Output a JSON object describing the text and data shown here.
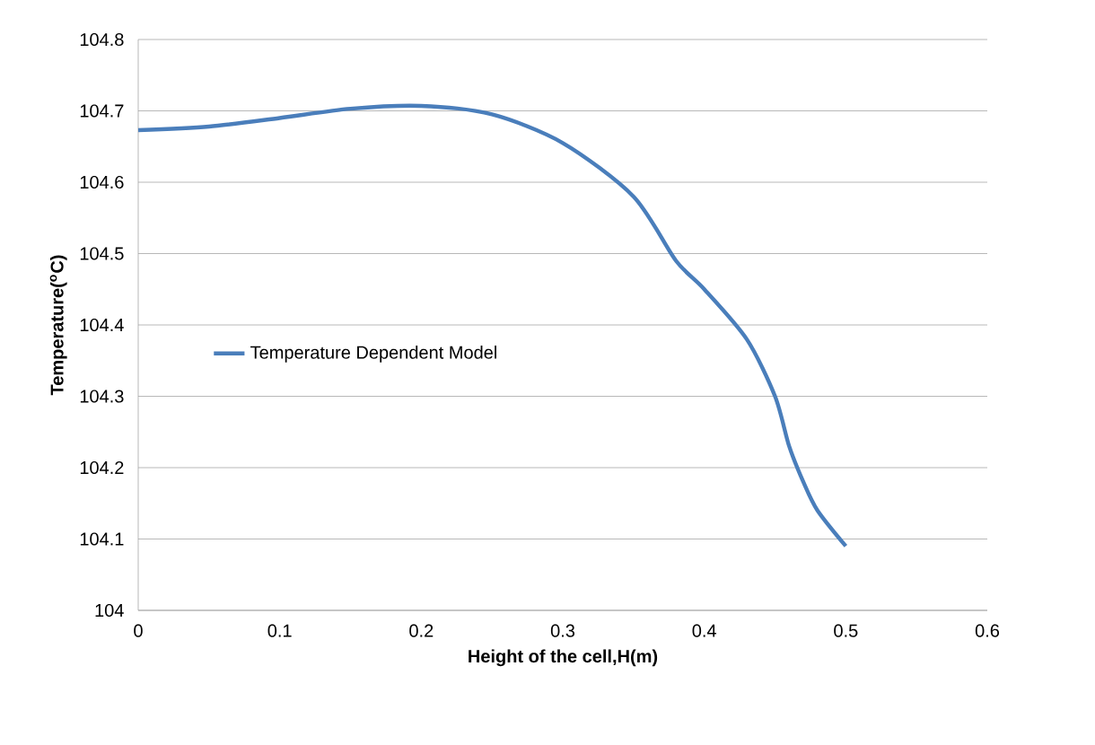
{
  "chart_data": {
    "type": "line",
    "xlabel": "Height of the cell,H(m)",
    "ylabel": "Temperature($^{o}$C)",
    "x": [
      0,
      0.05,
      0.1,
      0.15,
      0.2,
      0.25,
      0.3,
      0.35,
      0.38,
      0.4,
      0.43,
      0.45,
      0.46,
      0.47,
      0.48,
      0.5
    ],
    "series": [
      {
        "name": "Temperature Dependent Model",
        "color": "#4a7ebb",
        "values": [
          104.673,
          104.678,
          104.69,
          104.703,
          104.707,
          104.695,
          104.655,
          104.58,
          104.49,
          104.45,
          104.38,
          104.3,
          104.23,
          104.18,
          104.14,
          104.09
        ]
      }
    ],
    "xlim": [
      0,
      0.6
    ],
    "ylim": [
      104,
      104.8
    ],
    "xticks": [
      0,
      0.1,
      0.2,
      0.3,
      0.4,
      0.5,
      0.6
    ],
    "yticks": [
      104,
      104.1,
      104.2,
      104.3,
      104.4,
      104.5,
      104.6,
      104.7,
      104.8
    ],
    "grid": "y",
    "legend": "left",
    "marker": "none",
    "line_style": "solid"
  }
}
